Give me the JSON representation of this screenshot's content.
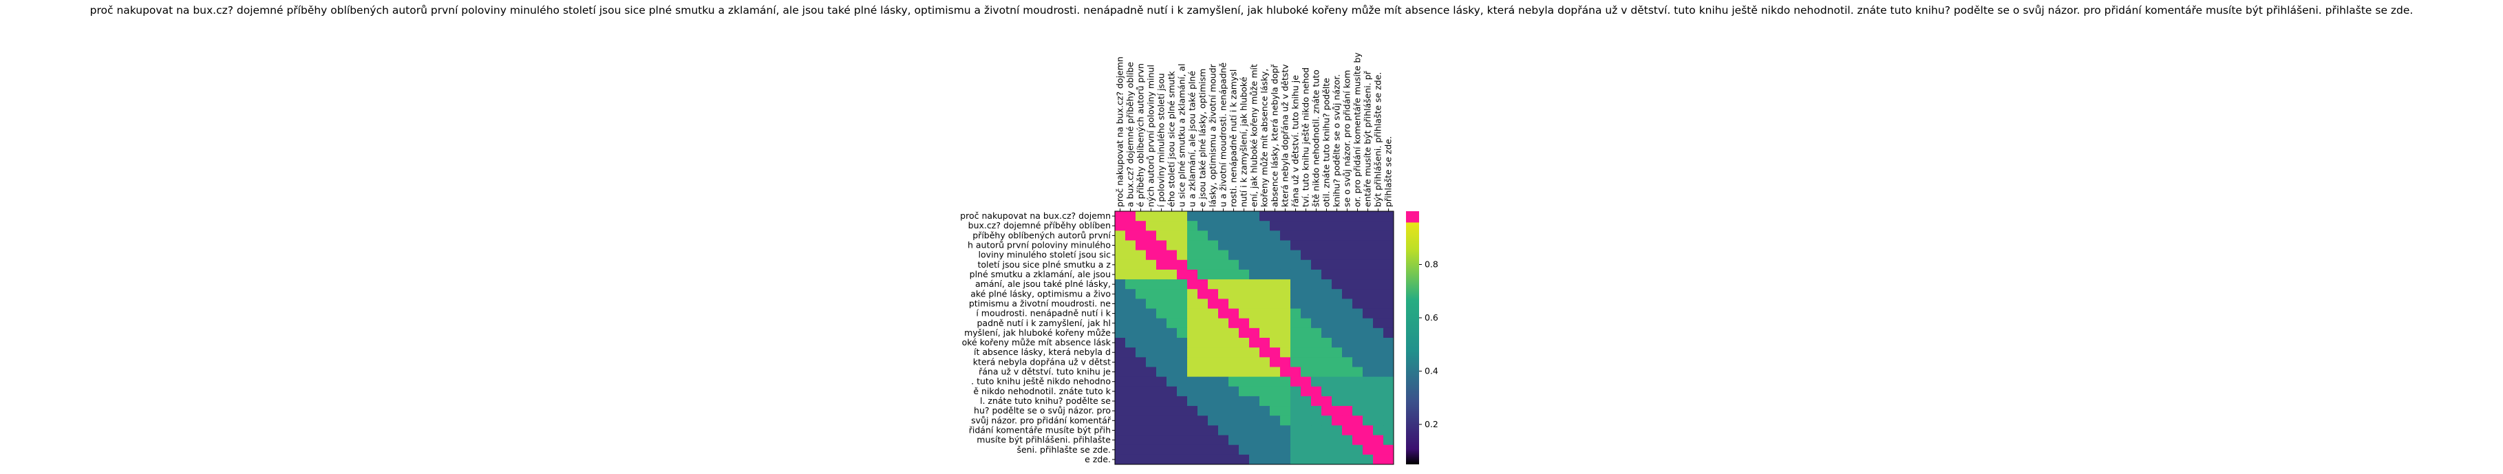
{
  "chart_data": {
    "type": "heatmap",
    "title": "proč nakupovat na bux.cz? dojemné příběhy oblíbených autorů první poloviny minulého století jsou sice plné smutku a zklamání, ale jsou také plné lásky, optimismu a životní moudrosti. nenápadně nutí i k zamyšlení, jak hluboké kořeny může mít absence lásky, která nebyla dopřána už v dětství. tuto knihu ještě nikdo nehodnotil. znáte tuto knihu? podělte se o svůj názor. pro přidání komentáře musíte být přihlášeni. přihlašte se zde.",
    "row_labels": [
      "proč nakupovat na bux.cz? dojemn",
      "bux.cz? dojemné příběhy oblíben",
      "příběhy oblíbených autorů první",
      "h autorů první poloviny minulého",
      "loviny minulého století jsou sic",
      "toletí jsou sice plné smutku a z",
      "plné smutku a zklamání, ale jsou",
      "amání, ale jsou také plné lásky,",
      "aké plné lásky, optimismu a živo",
      "ptimismu a životní moudrosti. ne",
      "í moudrosti. nenápadně nutí i k",
      "padně nutí i k zamyšlení, jak hl",
      "myšlení, jak hluboké kořeny může",
      "oké kořeny může mít absence lásk",
      "ít absence lásky, která nebyla d",
      "která nebyla dopřána už v dětst",
      "řána už v dětství. tuto knihu je",
      ". tuto knihu ještě nikdo nehodno",
      "ě nikdo nehodnotil. znáte tuto k",
      "l. znáte tuto knihu? podělte se",
      "hu? podělte se o svůj názor. pro",
      "svůj názor. pro přidání komentář",
      "řidání komentáře musíte být přih",
      "musíte být přihlášeni. přihlašte",
      "šeni. přihlašte se zde.",
      "e zde."
    ],
    "col_labels": [
      "proč nakupovat na bux.cz? dojemn",
      "a bux.cz? dojemné příběhy oblíbe",
      "é příběhy oblíbených autorů prvn",
      "ných autorů první poloviny minul",
      "í poloviny minulého století jsou",
      "ého století jsou sice plné smutk",
      "u sice plné smutku a zklamání, al",
      "u a zklamání, ale jsou také plné",
      "e jsou také plné lásky, optimism",
      "lásky, optimismu a životní moudr",
      "u a životní moudrosti. nenápadně",
      "rosti. nenápadně nutí i k zamysl",
      "nutí i k zamyšlení, jak hluboké",
      "ení, jak hluboké kořeny může mít",
      "kořeny může mít absence lásky,",
      "absence lásky, která nebyla dopř",
      "která nebyla dopřána už v dětstv",
      "řána už v dětství. tuto knihu je",
      "tví. tuto knihu ještě nikdo nehod",
      "ště nikdo nehodnotil. znáte tuto",
      "otil. znáte tuto knihu? podělte",
      "knihu? podělte se o svůj názor.",
      "se o svůj názor. pro přidání kom",
      "or. pro přidání komentáře musíte by",
      "entáře musíte být přihlášeni. př",
      "být přihlášeni. přihlašte se zde.",
      "přihlašte se zde."
    ],
    "colorbar": {
      "ticks": [
        0.2,
        0.4,
        0.6,
        0.8
      ],
      "min": 0.05,
      "max": 1.0,
      "above_max_color": "#ff1493"
    },
    "colormap": "viridis",
    "colors": {
      "diagonal": "#ff1493",
      "high": "#bfe03a",
      "low": "#3b2f7a"
    },
    "blocks": [
      {
        "rows": [
          0,
          7
        ],
        "cols": [
          0,
          7
        ],
        "value": 0.9
      },
      {
        "rows": [
          7,
          17
        ],
        "cols": [
          7,
          17
        ],
        "value": 0.85
      },
      {
        "rows": [
          17,
          26
        ],
        "cols": [
          17,
          27
        ],
        "value": 0.55
      }
    ]
  }
}
